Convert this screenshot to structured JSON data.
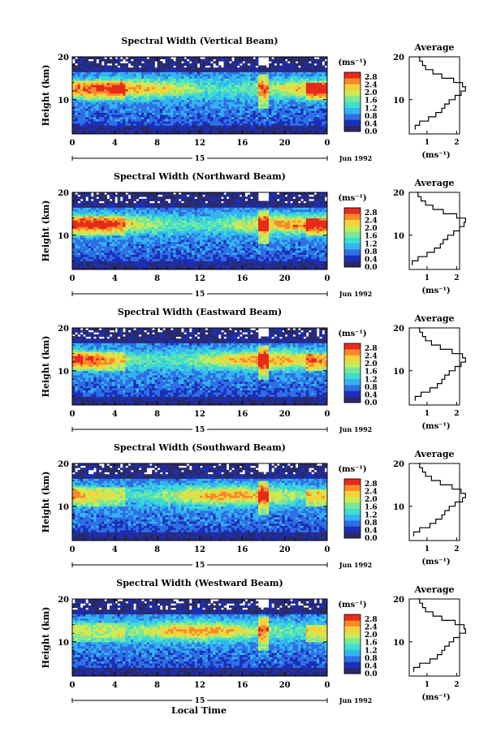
{
  "x_axis_label": "Local Time",
  "colorbar_ticks": [
    "2.8",
    "2.4",
    "2.0",
    "1.6",
    "1.2",
    "0.8",
    "0.4",
    "0.0"
  ],
  "colorbar_unit": "(ms⁻¹)",
  "date_label": "Jun 1992",
  "day_label": "15",
  "avg_title": "Average",
  "avg_xlabel": "(ms⁻¹)",
  "avg_xticks": [
    "1",
    "2"
  ],
  "avg_yticks": [
    "20",
    "10"
  ],
  "time_ticks": [
    "0",
    "4",
    "8",
    "12",
    "16",
    "20",
    "0"
  ],
  "height_label": "Height (km)",
  "height_ticks": [
    "20",
    "10"
  ],
  "colors": {
    "colorscale": [
      "#2a2a6a",
      "#1c2fb8",
      "#2f6fe6",
      "#33b4f0",
      "#3fdcd0",
      "#7ae89a",
      "#c8ec58",
      "#f6d23a",
      "#f88a2a",
      "#e82a1a"
    ]
  },
  "chart_data": [
    {
      "type": "heatmap",
      "title": "Spectral Width (Vertical Beam)",
      "xlim": [
        0,
        24
      ],
      "ylim": [
        2,
        20
      ],
      "avg_profile": {
        "heights": [
          3,
          4,
          5,
          6,
          7,
          8,
          9,
          10,
          11,
          12,
          13,
          14,
          15,
          16,
          17,
          18,
          19,
          20
        ],
        "values": [
          0.6,
          0.75,
          1.05,
          1.3,
          1.5,
          1.6,
          1.75,
          1.95,
          2.15,
          2.3,
          2.2,
          1.9,
          1.5,
          1.2,
          0.95,
          0.85,
          0.75,
          0.7
        ]
      }
    },
    {
      "type": "heatmap",
      "title": "Spectral Width (Northward Beam)",
      "xlim": [
        0,
        24
      ],
      "ylim": [
        2,
        20
      ],
      "avg_profile": {
        "heights": [
          3,
          4,
          5,
          6,
          7,
          8,
          9,
          10,
          11,
          12,
          13,
          14,
          15,
          16,
          17,
          18,
          19,
          20
        ],
        "values": [
          0.5,
          0.7,
          1.0,
          1.25,
          1.45,
          1.55,
          1.7,
          1.9,
          2.1,
          2.25,
          2.3,
          2.0,
          1.55,
          1.2,
          0.95,
          0.8,
          0.7,
          0.65
        ]
      }
    },
    {
      "type": "heatmap",
      "title": "Spectral Width (Eastward Beam)",
      "xlim": [
        0,
        24
      ],
      "ylim": [
        2,
        20
      ],
      "avg_profile": {
        "heights": [
          3,
          4,
          5,
          6,
          7,
          8,
          9,
          10,
          11,
          12,
          13,
          14,
          15,
          16,
          17,
          18,
          19,
          20
        ],
        "values": [
          0.6,
          0.8,
          1.1,
          1.35,
          1.5,
          1.6,
          1.75,
          1.95,
          2.15,
          2.3,
          2.2,
          1.85,
          1.45,
          1.15,
          0.95,
          0.85,
          0.75,
          0.7
        ]
      }
    },
    {
      "type": "heatmap",
      "title": "Spectral Width (Southward Beam)",
      "xlim": [
        0,
        24
      ],
      "ylim": [
        2,
        20
      ],
      "avg_profile": {
        "heights": [
          3,
          4,
          5,
          6,
          7,
          8,
          9,
          10,
          11,
          12,
          13,
          14,
          15,
          16,
          17,
          18,
          19,
          20
        ],
        "values": [
          0.55,
          0.75,
          1.1,
          1.3,
          1.5,
          1.6,
          1.75,
          1.95,
          2.2,
          2.3,
          2.15,
          1.85,
          1.45,
          1.15,
          0.95,
          0.85,
          0.75,
          0.7
        ]
      }
    },
    {
      "type": "heatmap",
      "title": "Spectral Width (Westward Beam)",
      "xlim": [
        0,
        24
      ],
      "ylim": [
        2,
        20
      ],
      "avg_profile": {
        "heights": [
          3,
          4,
          5,
          6,
          7,
          8,
          9,
          10,
          11,
          12,
          13,
          14,
          15,
          16,
          17,
          18,
          19,
          20
        ],
        "values": [
          0.55,
          0.75,
          1.1,
          1.35,
          1.5,
          1.6,
          1.75,
          1.9,
          2.1,
          2.3,
          2.25,
          1.95,
          1.5,
          1.2,
          0.95,
          0.85,
          0.75,
          0.7
        ]
      }
    }
  ]
}
